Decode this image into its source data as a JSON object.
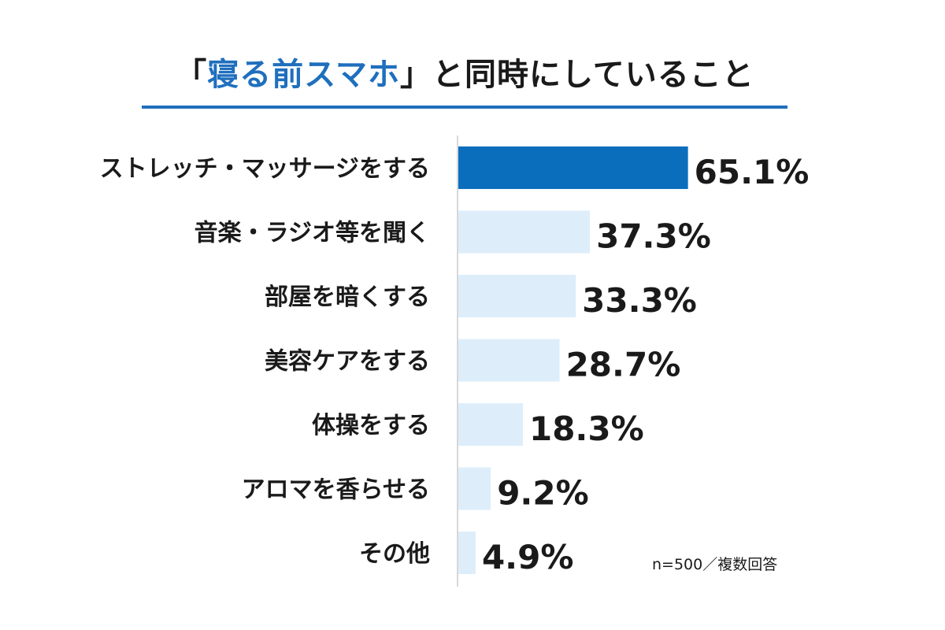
{
  "chart_data": {
    "type": "bar",
    "orientation": "horizontal",
    "title": {
      "open_bracket": "「",
      "highlight": "寝る前スマホ",
      "close_bracket": "」",
      "rest": "と同時にしていること"
    },
    "categories": [
      "ストレッチ・マッサージをする",
      "音楽・ラジオ等を聞く",
      "部屋を暗くする",
      "美容ケアをする",
      "体操をする",
      "アロマを香らせる",
      "その他"
    ],
    "values": [
      65.1,
      37.3,
      33.3,
      28.7,
      18.3,
      9.2,
      4.9
    ],
    "value_labels": [
      "65.1%",
      "37.3%",
      "33.3%",
      "28.7%",
      "18.3%",
      "9.2%",
      "4.9%"
    ],
    "unit": "%",
    "xlim": [
      0,
      100
    ],
    "highlight_index": 0,
    "colors": {
      "highlight_bar": "#0a6ebd",
      "bar": "#ddeefa",
      "title_accent": "#1f6fbd",
      "axis": "#cccccc"
    },
    "grid": false,
    "legend": "none",
    "note": "n=500／複数回答"
  }
}
